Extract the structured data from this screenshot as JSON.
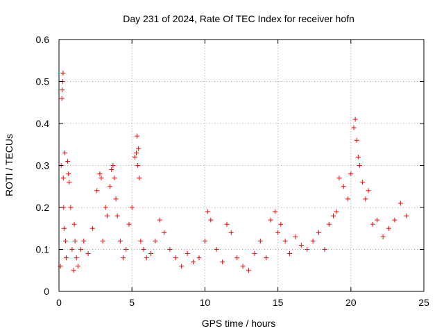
{
  "chart_data": {
    "type": "scatter",
    "title": "Day 231 of 2024, Rate Of TEC Index for receiver hofn",
    "xlabel": "GPS time / hours",
    "ylabel": "ROTI / TECUs",
    "xlim": [
      0,
      25
    ],
    "ylim": [
      0,
      0.6
    ],
    "xticks": [
      0,
      5,
      10,
      15,
      20,
      25
    ],
    "yticks": [
      0,
      0.1,
      0.2,
      0.3,
      0.4,
      0.5,
      0.6
    ],
    "grid": true,
    "marker": "+",
    "color": "#ff0000",
    "series": [
      {
        "x": [
          0.1,
          0.15,
          0.2,
          0.22,
          0.25,
          0.28,
          0.3,
          0.32,
          0.35,
          0.4,
          0.45,
          0.5,
          0.6,
          0.65,
          0.7,
          0.8,
          0.9,
          1.0,
          1.05,
          1.1,
          1.2,
          1.3,
          1.5,
          1.7,
          2.0,
          2.3,
          2.6,
          2.8,
          2.9,
          3.0,
          3.2,
          3.3,
          3.5,
          3.6,
          3.7,
          3.8,
          3.9,
          4.0,
          4.2,
          4.4,
          4.6,
          4.8,
          5.0,
          5.2,
          5.3,
          5.35,
          5.4,
          5.45,
          5.5,
          5.6,
          5.8,
          6.0,
          6.3,
          6.6,
          6.9,
          7.2,
          7.6,
          8.0,
          8.4,
          8.8,
          9.2,
          9.6,
          10.0,
          10.2,
          10.4,
          10.8,
          11.2,
          11.5,
          11.8,
          12.2,
          12.6,
          13.0,
          13.4,
          13.8,
          14.2,
          14.5,
          14.8,
          15.0,
          15.2,
          15.5,
          15.8,
          16.2,
          16.6,
          17.0,
          17.4,
          17.8,
          18.2,
          18.5,
          18.8,
          19.0,
          19.2,
          19.5,
          19.8,
          20.0,
          20.2,
          20.3,
          20.4,
          20.5,
          20.6,
          20.8,
          21.0,
          21.2,
          21.5,
          21.8,
          22.2,
          22.6,
          23.0,
          23.4,
          23.8
        ],
        "y": [
          0.06,
          0.3,
          0.46,
          0.48,
          0.5,
          0.52,
          0.27,
          0.2,
          0.15,
          0.33,
          0.12,
          0.08,
          0.31,
          0.28,
          0.26,
          0.2,
          0.1,
          0.05,
          0.16,
          0.12,
          0.08,
          0.06,
          0.1,
          0.12,
          0.09,
          0.15,
          0.24,
          0.28,
          0.27,
          0.12,
          0.2,
          0.18,
          0.25,
          0.29,
          0.3,
          0.27,
          0.22,
          0.18,
          0.12,
          0.08,
          0.1,
          0.16,
          0.2,
          0.32,
          0.33,
          0.37,
          0.3,
          0.34,
          0.27,
          0.12,
          0.1,
          0.08,
          0.09,
          0.12,
          0.17,
          0.14,
          0.1,
          0.08,
          0.06,
          0.09,
          0.07,
          0.08,
          0.12,
          0.19,
          0.17,
          0.1,
          0.07,
          0.16,
          0.14,
          0.08,
          0.06,
          0.05,
          0.09,
          0.12,
          0.08,
          0.17,
          0.19,
          0.14,
          0.16,
          0.12,
          0.09,
          0.13,
          0.11,
          0.1,
          0.12,
          0.14,
          0.1,
          0.16,
          0.18,
          0.19,
          0.27,
          0.25,
          0.22,
          0.28,
          0.39,
          0.41,
          0.36,
          0.32,
          0.3,
          0.26,
          0.22,
          0.24,
          0.16,
          0.17,
          0.13,
          0.15,
          0.17,
          0.21,
          0.18
        ]
      }
    ]
  }
}
